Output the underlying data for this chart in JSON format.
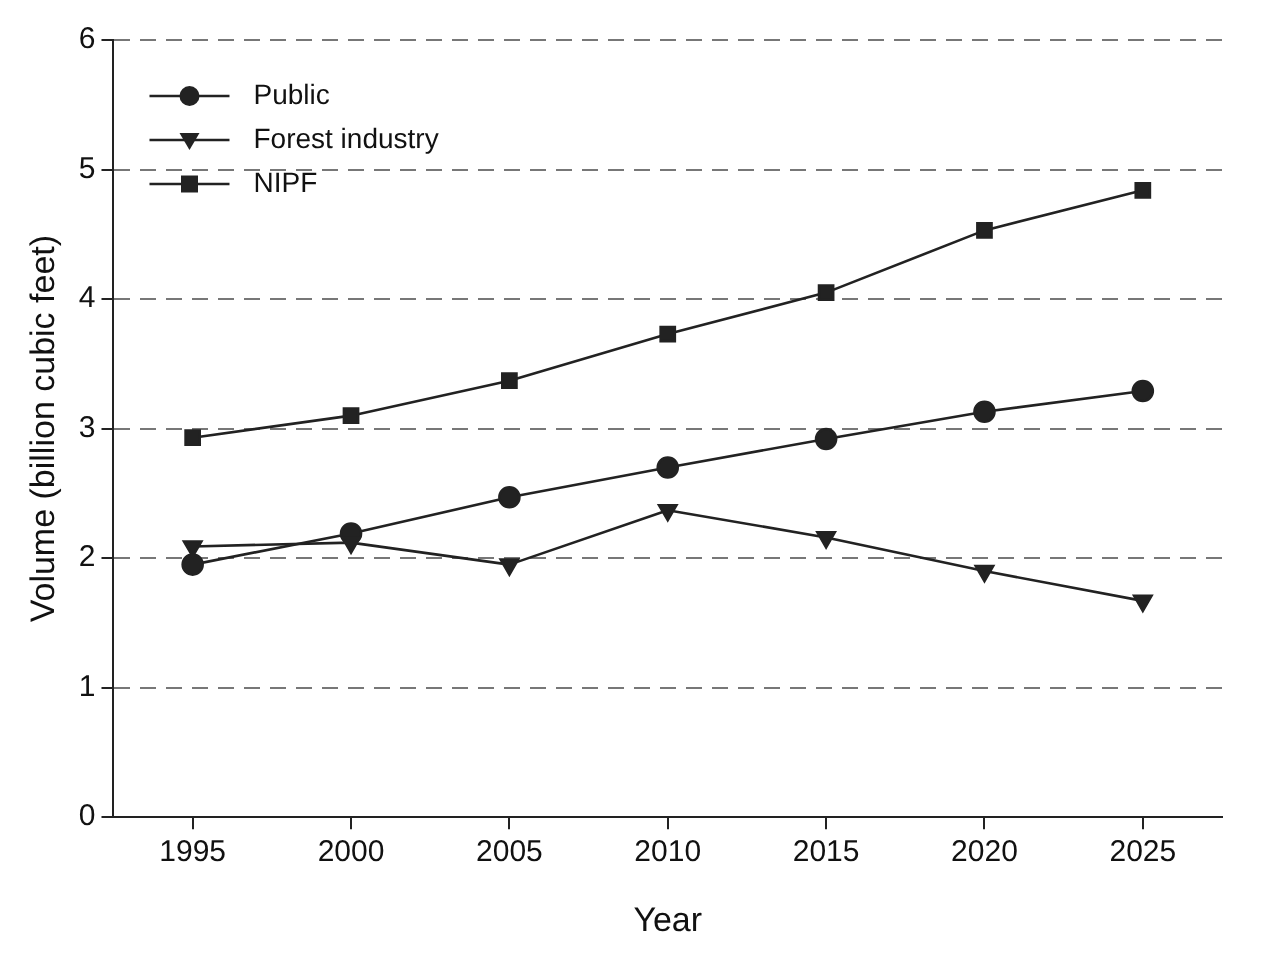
{
  "chart_data": {
    "type": "line",
    "xlabel": "Year",
    "ylabel": "Volume (billion cubic feet)",
    "categories": [
      "1995",
      "2000",
      "2005",
      "2010",
      "2015",
      "2020",
      "2025"
    ],
    "series": [
      {
        "name": "Public",
        "color": "#222222",
        "marker": "circle",
        "values": [
          1.95,
          2.19,
          2.47,
          2.7,
          2.92,
          3.13,
          3.29
        ]
      },
      {
        "name": "Forest industry",
        "color": "#222222",
        "marker": "triangle_down",
        "values": [
          2.09,
          2.12,
          1.95,
          2.37,
          2.16,
          1.9,
          1.67
        ]
      },
      {
        "name": "NIPF",
        "color": "#222222",
        "marker": "square",
        "values": [
          2.93,
          3.1,
          3.37,
          3.73,
          4.05,
          4.53,
          4.84
        ]
      }
    ],
    "ylim": [
      0,
      6
    ],
    "yticks": [
      0,
      1,
      2,
      3,
      4,
      5,
      6
    ],
    "grid": "y",
    "legend": "top left",
    "line_style": "solid"
  }
}
